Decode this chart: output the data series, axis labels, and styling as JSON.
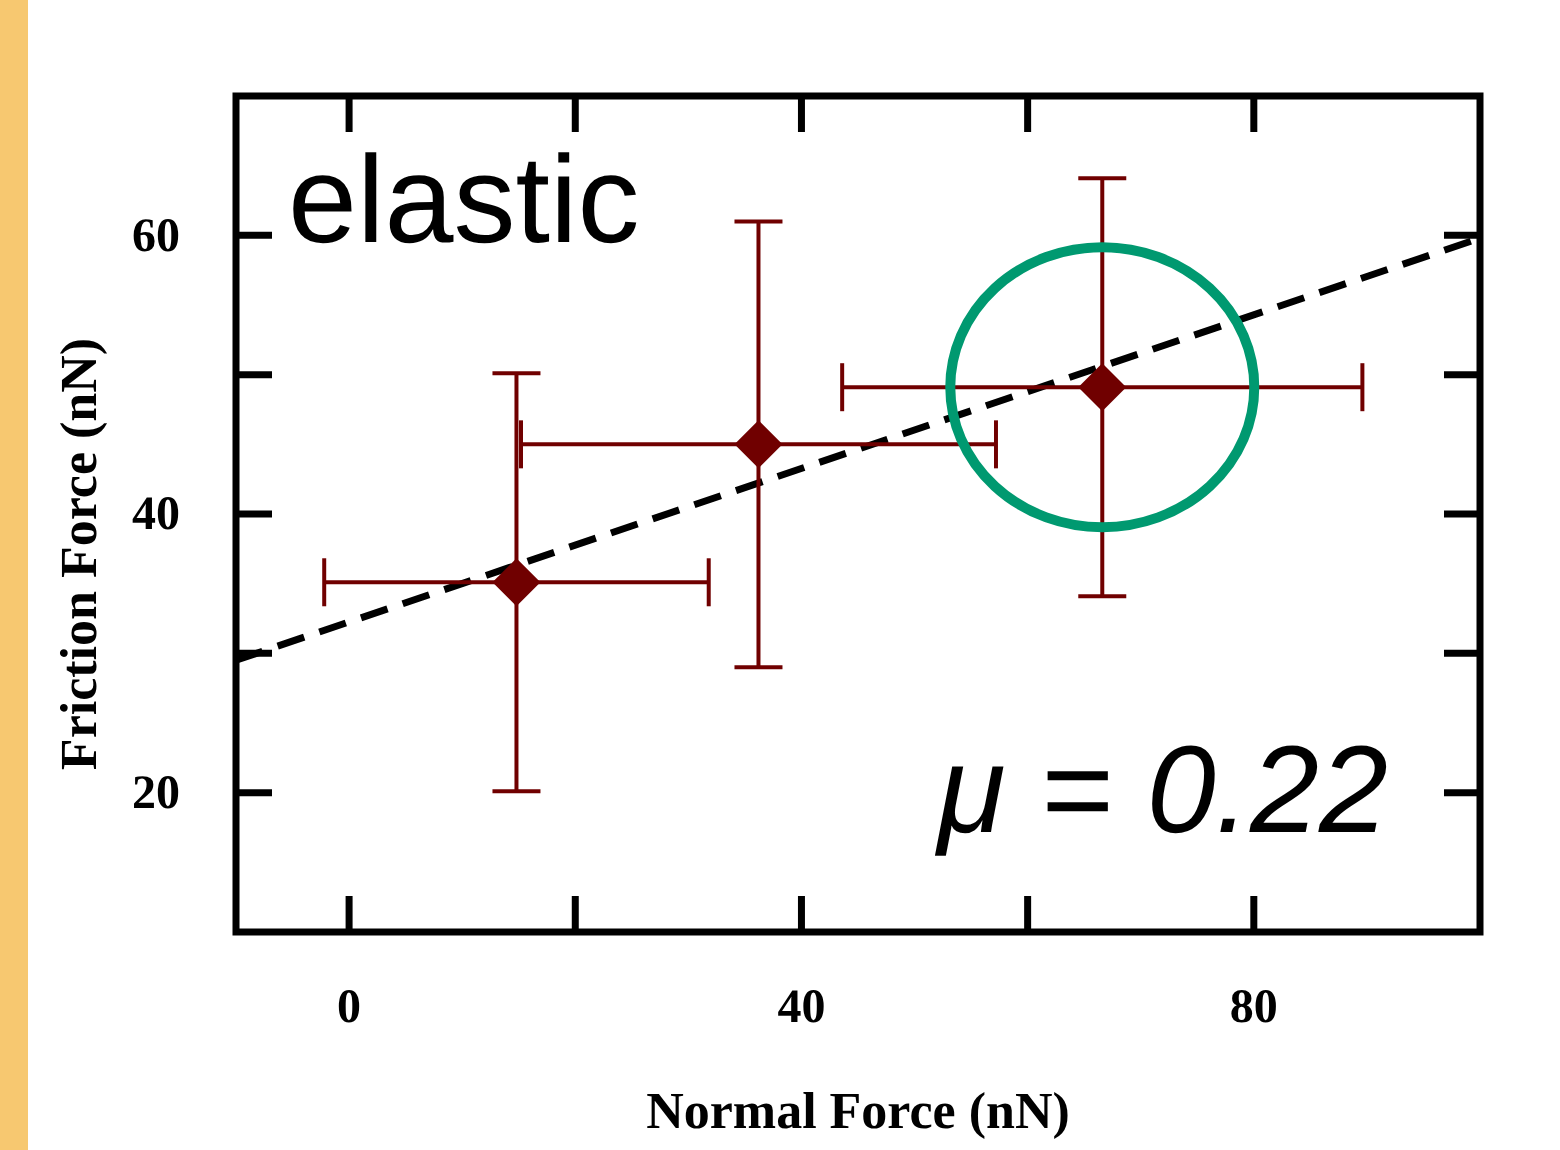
{
  "chart_data": {
    "type": "scatter",
    "xlabel": "Normal Force (nN)",
    "ylabel": "Friction Force (nN)",
    "xlim": [
      -10,
      100
    ],
    "ylim": [
      10,
      70
    ],
    "xticks": [
      0,
      40,
      80
    ],
    "yticks": [
      20,
      40,
      60
    ],
    "grid": false,
    "series": [
      {
        "color": "#700000",
        "marker": "diamond",
        "x": [
          14.8,
          36.2,
          66.6
        ],
        "values": [
          35.1,
          45,
          49.1
        ],
        "errors": [
          15,
          16,
          15
        ],
        "xerrors": [
          17,
          21,
          23
        ]
      },
      {
        "type": "line",
        "color": "#000000",
        "marker": "none",
        "line_style": "dashed",
        "x": [
          -10,
          100
        ],
        "values": [
          29.5,
          59.8
        ]
      }
    ],
    "annotations": [
      "elastic",
      "μ = 0.22"
    ]
  }
}
